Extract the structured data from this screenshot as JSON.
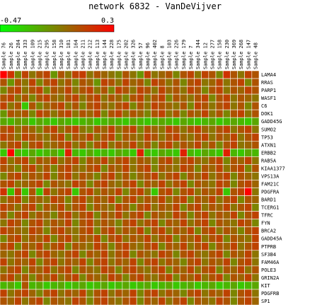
{
  "chart_data": {
    "type": "heatmap",
    "title": "network 6832 - VanDeVijver",
    "scale": {
      "min": -0.47,
      "max": 0.3,
      "min_label": "-0.47",
      "max_label": "0.3",
      "low_color": "#00ff00",
      "mid_color": "#808000",
      "high_color": "#ff0000"
    },
    "columns": [
      "Sample 76",
      "Sample 26",
      "Sample 284",
      "Sample 333",
      "Sample 109",
      "Sample 215",
      "Sample 295",
      "Sample 158",
      "Sample 310",
      "Sample 181",
      "Sample 164",
      "Sample 211",
      "Sample 212",
      "Sample 113",
      "Sample 144",
      "Sample 228",
      "Sample 175",
      "Sample 202",
      "Sample 326",
      "Sample 57",
      "Sample 96",
      "Sample 402",
      "Sample 8",
      "Sample 103",
      "Sample 226",
      "Sample 179",
      "Sample 7",
      "Sample 344",
      "Sample 12",
      "Sample 277",
      "Sample 158",
      "Sample 230",
      "Sample 369",
      "Sample 268",
      "Sample 147",
      "Sample 48"
    ],
    "rows": [
      "LAMA4",
      "RRAS",
      "PARP1",
      "WASF1",
      "C6",
      "DOK1",
      "GADD45G",
      "SUMO2",
      "TP53",
      "ATXN1",
      "ERBB2",
      "RAB5A",
      "KIAA1377",
      "VPS13A",
      "FAM21C",
      "PDGFRA",
      "BARD1",
      "TCERG1",
      "TFRC",
      "FYN",
      "BRCA2",
      "GADD45A",
      "PTPRB",
      "SF3B4",
      "FAM46A",
      "POLE3",
      "GRIN2A",
      "KIT",
      "PDGFRB",
      "SP1"
    ],
    "values": [
      [
        0.3,
        0.15,
        -0.1,
        0.1,
        -0.05,
        0.05,
        0.1,
        -0.15,
        0.05,
        -0.05,
        0.1,
        0.12,
        -0.05,
        0.05,
        0.0,
        -0.05,
        -0.1,
        0.05,
        -0.05,
        -0.15,
        0.1,
        -0.05,
        0.0,
        0.05,
        -0.1,
        0.05,
        0.1,
        -0.05,
        0.1,
        0.05,
        -0.1,
        0.15,
        0.05,
        -0.05,
        0.1,
        0.05
      ],
      [
        0.05,
        -0.15,
        0.05,
        -0.05,
        0.1,
        -0.1,
        0.05,
        0.1,
        -0.05,
        0.05,
        -0.1,
        0.05,
        0.0,
        -0.15,
        0.1,
        0.05,
        -0.05,
        0.1,
        0.0,
        0.05,
        -0.1,
        0.1,
        0.05,
        -0.05,
        0.05,
        -0.1,
        0.05,
        0.1,
        -0.05,
        0.0,
        0.1,
        -0.05,
        0.05,
        0.1,
        -0.1,
        0.05
      ],
      [
        -0.1,
        0.05,
        0.1,
        -0.05,
        0.05,
        0.1,
        -0.1,
        0.05,
        0.0,
        0.1,
        -0.05,
        0.05,
        0.1,
        -0.05,
        0.05,
        -0.1,
        0.1,
        0.05,
        -0.05,
        0.1,
        0.05,
        -0.05,
        0.1,
        0.0,
        0.05,
        -0.05,
        0.1,
        0.05,
        -0.1,
        0.05,
        0.1,
        -0.05,
        0.05,
        0.0,
        0.1,
        0.05
      ],
      [
        0.05,
        0.1,
        -0.05,
        0.05,
        -0.1,
        0.05,
        0.1,
        0.0,
        -0.05,
        0.05,
        0.1,
        -0.05,
        0.05,
        0.1,
        -0.05,
        0.05,
        0.0,
        -0.1,
        0.05,
        0.1,
        -0.05,
        0.05,
        0.1,
        -0.1,
        0.05,
        0.0,
        -0.05,
        0.05,
        0.1,
        -0.1,
        0.05,
        0.1,
        -0.05,
        0.05,
        0.0,
        -0.05
      ],
      [
        0.1,
        -0.05,
        0.05,
        -0.3,
        0.05,
        -0.1,
        0.0,
        0.05,
        0.1,
        -0.05,
        0.05,
        -0.1,
        0.05,
        0.1,
        0.0,
        -0.05,
        0.05,
        0.1,
        -0.1,
        0.05,
        -0.05,
        0.1,
        0.05,
        0.0,
        -0.05,
        0.05,
        -0.1,
        0.1,
        0.05,
        -0.05,
        0.05,
        0.1,
        -0.05,
        0.05,
        -0.1,
        0.05
      ],
      [
        -0.15,
        0.05,
        0.0,
        0.05,
        -0.1,
        0.1,
        0.05,
        -0.05,
        0.05,
        0.1,
        -0.05,
        0.05,
        0.0,
        0.1,
        -0.1,
        0.05,
        0.1,
        -0.05,
        0.05,
        0.0,
        -0.1,
        0.05,
        0.1,
        -0.05,
        0.05,
        -0.1,
        0.05,
        0.0,
        0.1,
        -0.05,
        0.05,
        -0.1,
        0.05,
        0.1,
        -0.05,
        0.05
      ],
      [
        -0.2,
        -0.25,
        -0.15,
        -0.2,
        -0.3,
        -0.2,
        -0.25,
        -0.3,
        -0.2,
        -0.25,
        -0.3,
        -0.25,
        -0.2,
        -0.3,
        -0.25,
        -0.2,
        -0.25,
        -0.3,
        -0.2,
        -0.25,
        -0.3,
        -0.25,
        -0.2,
        -0.25,
        -0.3,
        -0.2,
        -0.25,
        -0.3,
        -0.25,
        -0.2,
        -0.3,
        -0.25,
        -0.2,
        -0.25,
        -0.3,
        -0.2
      ],
      [
        0.05,
        0.1,
        -0.05,
        0.05,
        0.0,
        -0.1,
        0.05,
        0.1,
        -0.05,
        0.05,
        0.1,
        -0.05,
        -0.1,
        0.05,
        0.0,
        0.1,
        -0.05,
        0.05,
        0.1,
        -0.1,
        0.05,
        0.0,
        -0.05,
        0.1,
        0.05,
        -0.05,
        0.05,
        0.1,
        0.0,
        -0.05,
        0.05,
        0.1,
        -0.05,
        0.05,
        0.1,
        -0.05
      ],
      [
        0.1,
        0.05,
        -0.05,
        0.1,
        0.05,
        0.0,
        -0.05,
        0.05,
        0.1,
        -0.1,
        0.05,
        0.0,
        0.1,
        -0.05,
        0.05,
        0.1,
        -0.1,
        0.05,
        0.0,
        -0.05,
        0.1,
        0.05,
        -0.05,
        0.05,
        0.1,
        0.0,
        -0.05,
        0.05,
        0.1,
        -0.05,
        0.05,
        0.0,
        0.1,
        -0.05,
        0.05,
        0.1
      ],
      [
        -0.05,
        0.05,
        0.1,
        -0.1,
        0.05,
        0.1,
        -0.05,
        0.0,
        0.05,
        0.1,
        -0.05,
        0.05,
        -0.1,
        0.05,
        0.1,
        -0.05,
        0.05,
        0.0,
        0.1,
        -0.05,
        0.05,
        -0.1,
        0.05,
        0.1,
        -0.05,
        0.05,
        0.0,
        0.1,
        -0.05,
        0.05,
        -0.1,
        0.05,
        0.1,
        -0.05,
        0.0,
        0.05
      ],
      [
        -0.3,
        0.3,
        -0.25,
        -0.3,
        -0.2,
        -0.3,
        -0.25,
        -0.2,
        -0.3,
        0.2,
        -0.25,
        -0.3,
        -0.2,
        -0.3,
        -0.25,
        -0.3,
        -0.2,
        -0.25,
        -0.3,
        0.2,
        -0.25,
        -0.3,
        -0.2,
        -0.25,
        -0.3,
        0.2,
        -0.25,
        -0.3,
        -0.2,
        -0.25,
        -0.3,
        0.2,
        -0.25,
        -0.3,
        -0.2,
        -0.25
      ],
      [
        0.1,
        -0.05,
        0.05,
        0.1,
        -0.1,
        0.05,
        0.0,
        0.1,
        -0.05,
        0.05,
        0.1,
        -0.1,
        0.05,
        0.0,
        0.1,
        -0.05,
        0.05,
        0.1,
        -0.05,
        0.05,
        0.0,
        -0.1,
        0.05,
        0.1,
        -0.05,
        0.05,
        0.1,
        0.0,
        -0.05,
        0.05,
        0.1,
        -0.1,
        0.05,
        0.0,
        0.1,
        -0.05
      ],
      [
        0.05,
        0.0,
        -0.1,
        0.05,
        0.1,
        -0.05,
        0.05,
        -0.1,
        0.05,
        0.1,
        0.0,
        -0.05,
        0.05,
        0.1,
        -0.1,
        0.05,
        0.0,
        0.1,
        -0.05,
        0.05,
        0.1,
        -0.1,
        0.05,
        0.0,
        -0.05,
        0.1,
        0.05,
        -0.1,
        0.05,
        0.0,
        0.1,
        -0.05,
        0.05,
        0.1,
        -0.1,
        0.05
      ],
      [
        -0.1,
        0.05,
        0.1,
        -0.05,
        0.05,
        0.0,
        0.1,
        -0.1,
        0.05,
        0.1,
        -0.05,
        0.05,
        0.0,
        -0.1,
        0.05,
        0.1,
        -0.05,
        0.05,
        -0.1,
        0.0,
        0.05,
        0.1,
        -0.05,
        0.05,
        0.1,
        -0.1,
        0.05,
        0.0,
        0.1,
        -0.05,
        0.05,
        0.1,
        -0.1,
        0.05,
        0.0,
        -0.05
      ],
      [
        0.05,
        0.1,
        -0.05,
        0.0,
        0.05,
        0.1,
        -0.1,
        0.05,
        0.0,
        -0.05,
        0.1,
        0.05,
        -0.1,
        0.05,
        0.1,
        0.0,
        -0.05,
        0.05,
        0.1,
        -0.1,
        0.05,
        0.0,
        0.1,
        -0.05,
        0.05,
        0.1,
        -0.1,
        0.05,
        0.0,
        -0.05,
        0.1,
        0.05,
        -0.1,
        0.05,
        0.1,
        0.0
      ],
      [
        0.15,
        -0.3,
        0.1,
        -0.3,
        0.05,
        -0.3,
        0.1,
        -0.05,
        0.05,
        0.1,
        -0.3,
        0.05,
        0.1,
        -0.05,
        0.05,
        0.0,
        0.1,
        -0.1,
        0.05,
        0.1,
        -0.05,
        -0.3,
        0.05,
        0.1,
        -0.1,
        0.05,
        0.1,
        -0.05,
        0.05,
        0.0,
        0.1,
        -0.3,
        0.05,
        0.1,
        0.3,
        -0.05
      ],
      [
        -0.05,
        0.05,
        0.1,
        -0.1,
        0.05,
        0.0,
        -0.05,
        0.1,
        0.05,
        -0.1,
        0.05,
        0.1,
        -0.05,
        0.05,
        0.0,
        0.1,
        -0.1,
        0.05,
        0.1,
        -0.05,
        0.05,
        0.0,
        0.1,
        -0.05,
        0.05,
        0.1,
        -0.1,
        0.05,
        0.0,
        0.1,
        -0.05,
        0.05,
        0.1,
        -0.1,
        0.05,
        0.0
      ],
      [
        0.1,
        0.05,
        -0.05,
        0.05,
        0.1,
        -0.1,
        0.05,
        0.0,
        0.1,
        -0.05,
        0.05,
        0.1,
        -0.1,
        0.05,
        0.0,
        -0.05,
        0.1,
        0.05,
        -0.1,
        0.05,
        0.1,
        -0.05,
        0.05,
        0.0,
        0.1,
        -0.1,
        0.05,
        0.1,
        -0.05,
        0.05,
        0.0,
        0.1,
        -0.05,
        0.05,
        0.1,
        -0.1
      ],
      [
        0.05,
        -0.1,
        0.05,
        0.1,
        -0.05,
        0.05,
        0.0,
        -0.1,
        0.05,
        0.1,
        -0.05,
        0.05,
        0.1,
        -0.1,
        0.05,
        0.0,
        0.1,
        -0.05,
        0.05,
        0.1,
        -0.1,
        0.05,
        0.0,
        -0.05,
        0.1,
        0.05,
        -0.1,
        0.05,
        0.1,
        -0.05,
        0.05,
        0.0,
        0.1,
        -0.1,
        0.05,
        0.1
      ],
      [
        -0.05,
        0.1,
        0.05,
        -0.1,
        0.05,
        0.1,
        -0.05,
        0.05,
        0.0,
        0.1,
        -0.1,
        0.05,
        0.1,
        -0.05,
        0.05,
        0.0,
        -0.1,
        0.05,
        0.1,
        -0.05,
        0.05,
        0.1,
        -0.1,
        0.05,
        0.0,
        0.1,
        -0.05,
        0.05,
        0.1,
        -0.1,
        0.05,
        0.0,
        -0.05,
        0.1,
        0.05,
        -0.1
      ],
      [
        0.1,
        0.05,
        0.0,
        -0.05,
        0.1,
        0.05,
        -0.1,
        0.05,
        0.1,
        0.0,
        -0.05,
        0.05,
        0.1,
        -0.1,
        0.05,
        0.1,
        -0.05,
        0.05,
        0.0,
        0.1,
        -0.1,
        0.05,
        0.1,
        -0.05,
        0.05,
        0.0,
        0.1,
        -0.1,
        0.05,
        0.1,
        -0.05,
        0.05,
        0.0,
        -0.1,
        0.05,
        0.1
      ],
      [
        -0.1,
        0.05,
        0.1,
        -0.05,
        0.05,
        0.0,
        0.1,
        -0.1,
        0.05,
        0.1,
        -0.05,
        0.05,
        0.0,
        0.1,
        -0.1,
        0.05,
        0.1,
        -0.05,
        0.05,
        0.0,
        0.1,
        -0.05,
        0.05,
        0.1,
        -0.1,
        0.05,
        0.0,
        0.1,
        -0.05,
        0.05,
        0.1,
        -0.1,
        0.05,
        0.0,
        -0.05,
        0.1
      ],
      [
        0.05,
        0.1,
        -0.1,
        0.05,
        0.0,
        0.1,
        -0.05,
        0.05,
        0.1,
        -0.1,
        0.05,
        0.0,
        -0.05,
        0.1,
        0.05,
        -0.1,
        0.05,
        0.1,
        0.0,
        -0.05,
        0.05,
        0.1,
        -0.1,
        0.05,
        0.0,
        0.1,
        -0.05,
        0.05,
        0.1,
        -0.1,
        0.05,
        0.0,
        0.1,
        -0.05,
        0.05,
        0.1
      ],
      [
        0.0,
        -0.05,
        0.05,
        0.1,
        -0.1,
        0.05,
        0.1,
        0.0,
        -0.05,
        0.05,
        0.1,
        -0.1,
        0.05,
        0.0,
        0.1,
        -0.05,
        0.05,
        0.1,
        -0.1,
        0.05,
        0.0,
        -0.05,
        0.1,
        0.05,
        -0.1,
        0.05,
        0.1,
        0.0,
        -0.05,
        0.05,
        0.1,
        -0.1,
        0.05,
        0.0,
        0.1,
        -0.05
      ],
      [
        0.1,
        -0.05,
        0.05,
        0.0,
        0.1,
        -0.1,
        0.05,
        0.1,
        -0.05,
        0.05,
        0.0,
        0.1,
        -0.1,
        0.05,
        0.1,
        -0.05,
        0.05,
        0.0,
        0.1,
        -0.1,
        0.05,
        0.1,
        -0.05,
        0.05,
        0.0,
        -0.1,
        0.05,
        0.1,
        -0.05,
        0.05,
        0.0,
        0.1,
        -0.1,
        0.05,
        0.1,
        -0.05
      ],
      [
        -0.05,
        0.05,
        0.1,
        -0.1,
        0.05,
        0.0,
        0.1,
        -0.05,
        0.05,
        0.1,
        -0.1,
        0.05,
        0.0,
        -0.05,
        0.1,
        0.05,
        -0.1,
        0.05,
        0.1,
        0.0,
        -0.05,
        0.05,
        0.1,
        -0.1,
        0.05,
        0.0,
        0.1,
        -0.05,
        0.05,
        0.1,
        -0.1,
        0.05,
        0.0,
        0.1,
        -0.05,
        0.05
      ],
      [
        0.05,
        0.1,
        -0.05,
        0.05,
        -0.1,
        0.05,
        0.0,
        0.1,
        -0.05,
        0.05,
        0.1,
        -0.1,
        0.05,
        0.0,
        -0.05,
        0.1,
        0.05,
        -0.1,
        0.05,
        0.1,
        0.0,
        -0.05,
        0.05,
        0.1,
        -0.1,
        0.05,
        0.0,
        0.1,
        -0.05,
        0.05,
        0.1,
        -0.1,
        0.05,
        0.0,
        0.1,
        -0.05
      ],
      [
        -0.25,
        -0.2,
        -0.3,
        0.05,
        -0.25,
        -0.2,
        -0.3,
        -0.25,
        -0.2,
        -0.3,
        -0.25,
        -0.2,
        -0.3,
        -0.25,
        -0.2,
        -0.3,
        -0.25,
        -0.2,
        -0.3,
        -0.25,
        -0.2,
        -0.3,
        -0.25,
        -0.2,
        -0.3,
        -0.25,
        -0.2,
        -0.3,
        -0.25,
        -0.2,
        -0.3,
        -0.25,
        -0.2,
        -0.3,
        -0.25,
        -0.2
      ],
      [
        0.1,
        -0.05,
        0.05,
        0.1,
        0.0,
        -0.1,
        0.05,
        0.1,
        -0.05,
        0.05,
        0.0,
        0.1,
        -0.1,
        0.05,
        0.1,
        -0.05,
        0.05,
        0.0,
        0.1,
        -0.1,
        0.05,
        0.1,
        -0.05,
        0.05,
        0.0,
        -0.1,
        0.05,
        0.1,
        -0.05,
        0.05,
        0.0,
        0.1,
        -0.1,
        0.05,
        0.1,
        -0.05
      ],
      [
        0.05,
        0.0,
        0.1,
        -0.05,
        0.05,
        0.1,
        -0.1,
        0.05,
        0.0,
        -0.05,
        0.1,
        0.05,
        -0.1,
        0.05,
        0.1,
        0.0,
        -0.05,
        0.05,
        0.1,
        -0.1,
        0.05,
        0.0,
        0.1,
        -0.05,
        0.05,
        0.1,
        -0.1,
        0.05,
        0.0,
        -0.05,
        0.1,
        0.05,
        -0.1,
        0.05,
        0.1,
        0.0
      ]
    ]
  }
}
